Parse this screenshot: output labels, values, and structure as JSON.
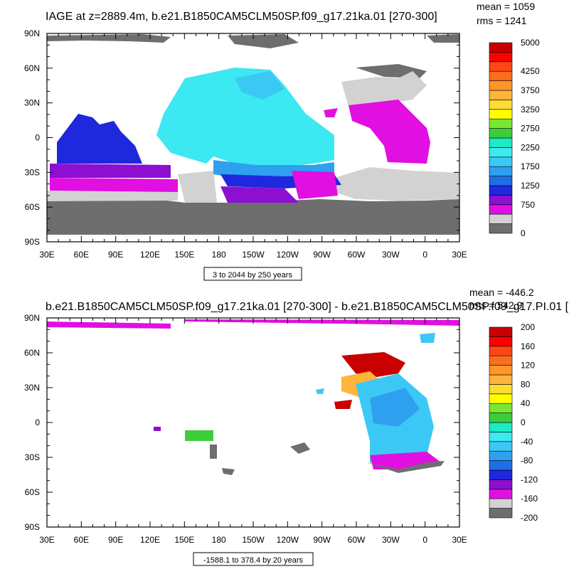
{
  "chart_data": [
    {
      "type": "heatmap",
      "title": "IAGE at z=2889.4m, b.e21.B1850CAM5CLM50SP.f09_g17.21ka.01 [270-300]",
      "stats": {
        "mean": "mean = 1059",
        "rms": "rms = 1241"
      },
      "x_ticks": [
        "30E",
        "60E",
        "90E",
        "120E",
        "150E",
        "180",
        "150W",
        "120W",
        "90W",
        "60W",
        "30W",
        "0",
        "30E"
      ],
      "y_ticks": [
        "90N",
        "60N",
        "30N",
        "0",
        "30S",
        "60S",
        "90S"
      ],
      "range_note": "3 to 2044 by 250 years",
      "colorbar": {
        "colors": [
          "#6e6e6e",
          "#d2d2d2",
          "#e10fe1",
          "#8c0fd2",
          "#1e28dc",
          "#1e6ee6",
          "#2fa0f0",
          "#3cc8f5",
          "#3cebf0",
          "#1eebc3",
          "#3ccd3c",
          "#78e632",
          "#ffff00",
          "#ffdc32",
          "#ffb43c",
          "#ff9628",
          "#fa6e1e",
          "#ff4614",
          "#ff0000",
          "#c80000"
        ],
        "labels": [
          "0",
          "750",
          "1250",
          "1750",
          "2250",
          "2750",
          "3250",
          "3750",
          "4250",
          "5000"
        ],
        "label_slots": [
          0,
          3,
          5,
          7,
          9,
          11,
          13,
          15,
          17,
          20
        ]
      }
    },
    {
      "type": "heatmap",
      "title": "b.e21.B1850CAM5CLM50SP.f09_g17.21ka.01 [270-300] - b.e21.B1850CAM5CLM50SP.f09_g17.PI.01 [",
      "stats": {
        "mean": "mean = -446.2",
        "rms": "rms = 542.9"
      },
      "x_ticks": [
        "30E",
        "60E",
        "90E",
        "120E",
        "150E",
        "180",
        "150W",
        "120W",
        "90W",
        "60W",
        "30W",
        "0",
        "30E"
      ],
      "y_ticks": [
        "90N",
        "60N",
        "30N",
        "0",
        "30S",
        "60S",
        "90S"
      ],
      "range_note": "-1588.1 to 378.4 by 20 years",
      "colorbar": {
        "colors": [
          "#6e6e6e",
          "#d2d2d2",
          "#e10fe1",
          "#8c0fd2",
          "#1e28dc",
          "#1e6ee6",
          "#2fa0f0",
          "#3cc8f5",
          "#3cebf0",
          "#1eebc3",
          "#3ccd3c",
          "#78e632",
          "#ffff00",
          "#ffdc32",
          "#ffb43c",
          "#ff9628",
          "#fa6e1e",
          "#ff4614",
          "#ff0000",
          "#c80000"
        ],
        "labels": [
          "-200",
          "-160",
          "-120",
          "-80",
          "-40",
          "0",
          "40",
          "80",
          "120",
          "160",
          "200"
        ],
        "label_slots": [
          0,
          2,
          4,
          6,
          8,
          10,
          12,
          14,
          16,
          18,
          20
        ]
      }
    }
  ]
}
